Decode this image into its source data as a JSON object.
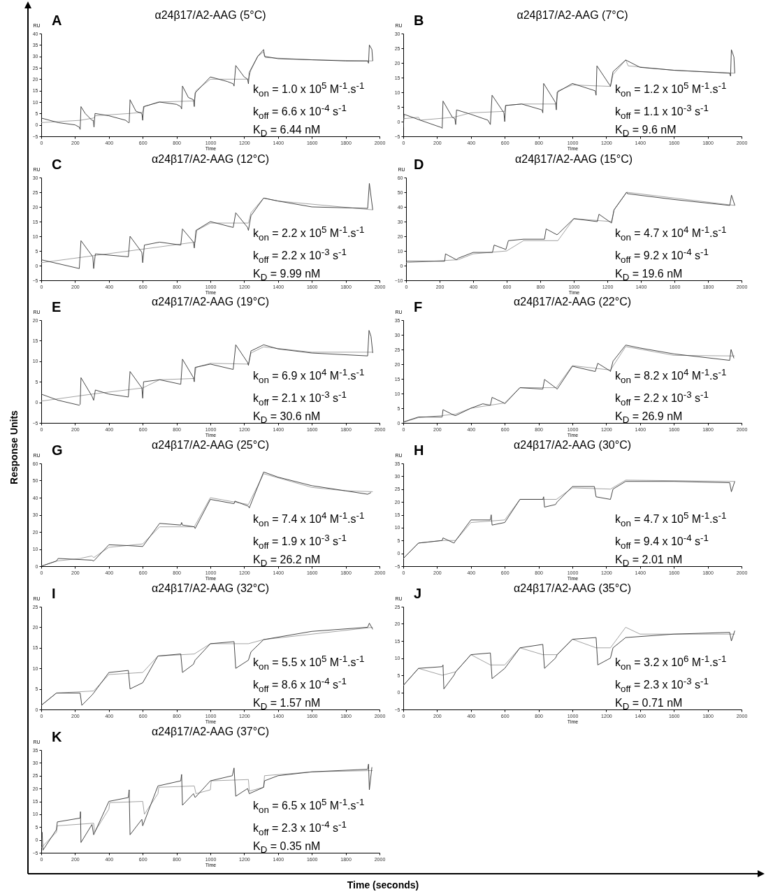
{
  "chart_data": [
    {
      "type": "line",
      "title": "α24β17/A2-AAG (5°C)",
      "xlabel": "Time",
      "ylabel": "RU",
      "annotations": [
        "A",
        "k$_{on}$ = 1.0 x 10$^{5}$ M$^{-1}$.s$^{-1}$",
        "k$_{off}$ = 6.6 x 10$^{-4}$ s$^{-1}$",
        "K$_{D}$ = 6.44 nM"
      ],
      "xlim": [
        0,
        2000
      ],
      "xticks": [
        0,
        200,
        400,
        600,
        800,
        1000,
        1200,
        1400,
        1600,
        1800,
        2000
      ],
      "ylim": [
        -5,
        40
      ],
      "yticks": [
        -5,
        0,
        5,
        10,
        15,
        20,
        25,
        30,
        35,
        40
      ],
      "series": [
        {
          "color": "#999999",
          "x": [
            0,
            230,
            310,
            320,
            520,
            600,
            610,
            690,
            905,
            915,
            1000,
            1225,
            1240,
            1280,
            1315,
            1325,
            1600,
            1960
          ],
          "values": [
            1,
            2,
            3,
            4,
            5,
            5.5,
            8,
            10,
            10.5,
            15,
            20,
            20,
            24,
            30,
            32,
            29.5,
            28.5,
            28
          ]
        },
        {
          "color": "#333333",
          "x": [
            0,
            50,
            100,
            200,
            225,
            230,
            235,
            260,
            300,
            308,
            312,
            318,
            400,
            500,
            515,
            520,
            525,
            560,
            595,
            600,
            605,
            700,
            800,
            825,
            830,
            835,
            870,
            900,
            905,
            910,
            1000,
            1100,
            1135,
            1140,
            1150,
            1200,
            1220,
            1225,
            1230,
            1280,
            1315,
            1320,
            1400,
            1600,
            1800,
            1930,
            1935,
            1940,
            1955,
            1960
          ],
          "values": [
            3,
            2,
            1,
            0,
            -1,
            -2,
            8,
            5,
            2,
            2,
            -1,
            5,
            4,
            2,
            1,
            1,
            11,
            6,
            5,
            2,
            8,
            10,
            9,
            8,
            7,
            17,
            12,
            11,
            8,
            14,
            21,
            19,
            18,
            17,
            26,
            21,
            20,
            18,
            23,
            30,
            33,
            30,
            29,
            28.5,
            28,
            28,
            27,
            35,
            33,
            28
          ]
        }
      ]
    },
    {
      "type": "line",
      "title": "α24β17/A2-AAG (7°C)",
      "xlabel": "Time",
      "ylabel": "RU",
      "annotations": [
        "B",
        "k$_{on}$ = 1.2 x 10$^{5}$ M$^{-1}$.s$^{-1}$",
        "k$_{off}$ = 1.1 x 10$^{-3}$ s$^{-1}$",
        "K$_{D}$ = 9.6 nM"
      ],
      "xlim": [
        0,
        2000
      ],
      "xticks": [
        0,
        200,
        400,
        600,
        800,
        1000,
        1200,
        1400,
        1600,
        1800,
        2000
      ],
      "ylim": [
        -5,
        30
      ],
      "yticks": [
        -5,
        0,
        5,
        10,
        15,
        20,
        25,
        30
      ],
      "series": [
        {
          "color": "#999999",
          "x": [
            0,
            90,
            100,
            300,
            400,
            600,
            605,
            700,
            905,
            915,
            1000,
            1225,
            1240,
            1315,
            1330,
            1600,
            1960
          ],
          "values": [
            1,
            1.5,
            0.5,
            1.5,
            3,
            3.5,
            5.5,
            6,
            6,
            10.5,
            12.5,
            12,
            16,
            21,
            19,
            17.5,
            16.5
          ]
        },
        {
          "color": "#333333",
          "x": [
            0,
            5,
            100,
            225,
            230,
            235,
            290,
            305,
            310,
            315,
            400,
            500,
            515,
            525,
            595,
            600,
            605,
            700,
            820,
            825,
            830,
            900,
            905,
            910,
            1000,
            1135,
            1140,
            1145,
            1220,
            1225,
            1240,
            1315,
            1400,
            1600,
            1930,
            1935,
            1940,
            1955,
            1960
          ],
          "values": [
            -2,
            2.5,
            0.5,
            -2,
            -2.3,
            7,
            1.5,
            1,
            -1,
            4,
            2.5,
            0.5,
            -1,
            9,
            3,
            0,
            5.5,
            6,
            4,
            3,
            13,
            6.5,
            4,
            10,
            13,
            10.5,
            9,
            19,
            12.5,
            12,
            17,
            21,
            18.5,
            17.5,
            16.5,
            15.5,
            24.5,
            22,
            16.5
          ]
        }
      ]
    },
    {
      "type": "line",
      "title": "α24β17/A2-AAG (12°C)",
      "xlabel": "Time",
      "ylabel": "RU",
      "annotations": [
        "C",
        "k$_{on}$ = 2.2 x 10$^{5}$ M$^{-1}$.s$^{-1}$",
        "k$_{off}$ = 2.2 x 10$^{-3}$ s$^{-1}$",
        "K$_{D}$ = 9.99 nM"
      ],
      "xlim": [
        0,
        2000
      ],
      "xticks": [
        0,
        200,
        400,
        600,
        800,
        1000,
        1200,
        1400,
        1600,
        1800,
        2000
      ],
      "ylim": [
        -5,
        30
      ],
      "yticks": [
        -5,
        0,
        5,
        10,
        15,
        20,
        25,
        30
      ],
      "series": [
        {
          "color": "#999999",
          "x": [
            0,
            910,
            920,
            1000,
            1225,
            1240,
            1315,
            1400,
            1960
          ],
          "values": [
            1,
            8,
            12,
            14.5,
            14.5,
            18,
            23,
            22,
            19
          ]
        },
        {
          "color": "#333333",
          "x": [
            0,
            225,
            235,
            305,
            310,
            320,
            515,
            525,
            595,
            600,
            610,
            700,
            825,
            835,
            900,
            905,
            915,
            1000,
            1135,
            1150,
            1220,
            1225,
            1240,
            1315,
            1400,
            1600,
            1930,
            1940,
            1960
          ],
          "values": [
            2,
            -1,
            8.5,
            3,
            -1,
            4,
            3,
            10,
            4.5,
            1,
            7,
            8,
            7,
            12.5,
            8,
            6,
            12,
            15,
            13,
            18,
            13,
            12,
            17,
            23,
            22,
            20,
            19.5,
            28,
            19
          ]
        }
      ]
    },
    {
      "type": "line",
      "title": "α24β17/A2-AAG (15°C)",
      "xlabel": "Time",
      "ylabel": "RU",
      "annotations": [
        "D",
        "k$_{on}$ = 4.7 x 10$^{4}$ M$^{-1}$.s$^{-1}$",
        "k$_{off}$ = 9.2 x 10$^{-4}$ s$^{-1}$",
        "K$_{D}$ = 19.6 nM"
      ],
      "xlim": [
        0,
        2000
      ],
      "xticks": [
        0,
        200,
        400,
        600,
        800,
        1000,
        1200,
        1400,
        1600,
        1800,
        2000
      ],
      "ylim": [
        -10,
        60
      ],
      "yticks": [
        -10,
        0,
        10,
        20,
        30,
        40,
        50,
        60
      ],
      "series": [
        {
          "color": "#999999",
          "x": [
            0,
            310,
            400,
            600,
            700,
            905,
            1000,
            1225,
            1240,
            1315,
            1960
          ],
          "values": [
            2,
            4,
            8,
            10,
            17,
            17,
            32,
            30,
            38,
            50,
            41
          ]
        },
        {
          "color": "#333333",
          "x": [
            0,
            230,
            235,
            300,
            310,
            400,
            515,
            525,
            595,
            610,
            700,
            825,
            835,
            900,
            910,
            1000,
            1140,
            1150,
            1225,
            1240,
            1315,
            1320,
            1600,
            1930,
            1940,
            1960
          ],
          "values": [
            3,
            3,
            8,
            4,
            5,
            9,
            9,
            14,
            11,
            17,
            18,
            18,
            25,
            21,
            22,
            32,
            30,
            35,
            29,
            38,
            50,
            49,
            45,
            41,
            48,
            41
          ]
        }
      ]
    },
    {
      "type": "line",
      "title": "α24β17/A2-AAG (19°C)",
      "xlabel": "Time",
      "ylabel": "RU",
      "annotations": [
        "E",
        "k$_{on}$ = 6.9 x 10$^{4}$ M$^{-1}$.s$^{-1}$",
        "k$_{off}$ = 2.1 x 10$^{-3}$ s$^{-1}$",
        "K$_{D}$ = 30.6 nM"
      ],
      "xlim": [
        0,
        2000
      ],
      "xticks": [
        0,
        200,
        400,
        600,
        800,
        1000,
        1200,
        1400,
        1600,
        1800,
        2000
      ],
      "ylim": [
        -5,
        20
      ],
      "yticks": [
        -5,
        0,
        5,
        10,
        15,
        20
      ],
      "series": [
        {
          "color": "#999999",
          "x": [
            0,
            300,
            600,
            700,
            905,
            915,
            1000,
            1225,
            1240,
            1315,
            1600,
            1960
          ],
          "values": [
            0.3,
            2,
            3.5,
            5.5,
            5.8,
            8.5,
            9.5,
            9.3,
            12,
            13.5,
            12.2,
            12.2
          ]
        },
        {
          "color": "#333333",
          "x": [
            0,
            100,
            225,
            230,
            235,
            300,
            310,
            320,
            400,
            515,
            525,
            595,
            600,
            605,
            700,
            825,
            835,
            900,
            905,
            910,
            1000,
            1135,
            1150,
            1220,
            1225,
            1240,
            1315,
            1400,
            1600,
            1930,
            1938,
            1950,
            1960
          ],
          "values": [
            2,
            0.5,
            -0.7,
            -0.5,
            6,
            1.5,
            0.5,
            3,
            2,
            1.3,
            7.5,
            3.5,
            1,
            5,
            5.5,
            4.4,
            10.5,
            6,
            5,
            8.5,
            9.3,
            8,
            14,
            9.7,
            9,
            12.5,
            14,
            13,
            12,
            11.3,
            17.5,
            16,
            12
          ]
        }
      ]
    },
    {
      "type": "line",
      "title": "α24β17/A2-AAG (22°C)",
      "xlabel": "Time",
      "ylabel": "RU",
      "annotations": [
        "F",
        "k$_{on}$ = 8.2 x 10$^{4}$ M$^{-1}$.s$^{-1}$",
        "k$_{off}$ = 2.2 x 10$^{-3}$ s$^{-1}$",
        "K$_{D}$ = 26.9 nM"
      ],
      "xlim": [
        0,
        2000
      ],
      "xticks": [
        0,
        200,
        400,
        600,
        800,
        1000,
        1200,
        1400,
        1600,
        1800,
        2000
      ],
      "ylim": [
        0,
        35
      ],
      "yticks": [
        0,
        5,
        10,
        15,
        20,
        25,
        30,
        35
      ],
      "series": [
        {
          "color": "#999999",
          "x": [
            0,
            90,
            230,
            310,
            400,
            600,
            690,
            905,
            1000,
            1225,
            1315,
            1600,
            1960
          ],
          "values": [
            0.2,
            1.8,
            2.5,
            3,
            5,
            6.8,
            12,
            12,
            19.5,
            18,
            26,
            23,
            22.8
          ]
        },
        {
          "color": "#333333",
          "x": [
            0,
            90,
            230,
            235,
            300,
            310,
            400,
            470,
            515,
            525,
            595,
            600,
            690,
            825,
            835,
            900,
            910,
            1000,
            1135,
            1150,
            1220,
            1225,
            1240,
            1315,
            1400,
            1600,
            1930,
            1938,
            1955
          ],
          "values": [
            0.3,
            2,
            2,
            4.5,
            2.6,
            2.5,
            5,
            6.5,
            6,
            8.7,
            6.8,
            6.5,
            12,
            11.5,
            14.8,
            12,
            11.5,
            19.3,
            17.5,
            20.3,
            17.8,
            17.5,
            21,
            26.5,
            25.5,
            23.5,
            21.3,
            25,
            22
          ]
        }
      ]
    },
    {
      "type": "line",
      "title": "α24β17/A2-AAG (25°C)",
      "xlabel": "Time",
      "ylabel": "RU",
      "annotations": [
        "G",
        "k$_{on}$ = 7.4 x 10$^{4}$ M$^{-1}$.s$^{-1}$",
        "k$_{off}$ = 1.9 x 10$^{-3}$ s$^{-1}$",
        "K$_{D}$ = 26.2 nM"
      ],
      "xlim": [
        0,
        2000
      ],
      "xticks": [
        0,
        200,
        400,
        600,
        800,
        1000,
        1200,
        1400,
        1600,
        1800,
        2000
      ],
      "ylim": [
        0,
        60
      ],
      "yticks": [
        0,
        10,
        20,
        30,
        40,
        50,
        60
      ],
      "series": [
        {
          "color": "#999999",
          "x": [
            0,
            90,
            230,
            300,
            310,
            400,
            600,
            700,
            905,
            1000,
            1225,
            1315,
            1600,
            1800,
            1960
          ],
          "values": [
            0,
            3,
            4.5,
            6,
            5,
            11,
            13,
            23,
            23,
            40,
            36,
            54,
            46,
            44,
            43.5
          ]
        },
        {
          "color": "#333333",
          "x": [
            0,
            90,
            100,
            300,
            310,
            400,
            520,
            600,
            700,
            825,
            830,
            835,
            905,
            910,
            1000,
            1140,
            1145,
            1225,
            1230,
            1315,
            1400,
            1600,
            1800,
            1930,
            1950
          ],
          "values": [
            0,
            3,
            4.5,
            3.5,
            3,
            12.5,
            12,
            11.5,
            25,
            24,
            25.5,
            24,
            23,
            22,
            39,
            36.5,
            38,
            35,
            34,
            55,
            52,
            47,
            44,
            42,
            43
          ]
        }
      ]
    },
    {
      "type": "line",
      "title": "α24β17/A2-AAG (30°C)",
      "xlabel": "Time",
      "ylabel": "RU",
      "annotations": [
        "H",
        "k$_{on}$ = 4.7 x 10$^{5}$ M$^{-1}$.s$^{-1}$",
        "k$_{off}$ = 9.4 x 10$^{-4}$ s$^{-1}$",
        "K$_{D}$ = 2.01 nM"
      ],
      "xlim": [
        0,
        2000
      ],
      "xticks": [
        0,
        200,
        400,
        600,
        800,
        1000,
        1200,
        1400,
        1600,
        1800,
        2000
      ],
      "ylim": [
        -5,
        35
      ],
      "yticks": [
        -5,
        0,
        5,
        10,
        15,
        20,
        25,
        30,
        35
      ],
      "series": [
        {
          "color": "#999999",
          "x": [
            0,
            90,
            230,
            310,
            400,
            600,
            690,
            905,
            1000,
            1225,
            1315,
            1960
          ],
          "values": [
            -2,
            4,
            5,
            5,
            12,
            13,
            21,
            21,
            25.5,
            25,
            28.5,
            28
          ]
        },
        {
          "color": "#333333",
          "x": [
            0,
            90,
            230,
            235,
            300,
            310,
            400,
            515,
            520,
            525,
            600,
            690,
            825,
            830,
            835,
            900,
            910,
            1000,
            1130,
            1140,
            1225,
            1240,
            1315,
            1600,
            1930,
            1940,
            1960
          ],
          "values": [
            -2,
            4,
            5,
            6,
            4,
            5,
            13,
            13,
            15,
            11,
            12,
            21,
            21,
            22,
            18,
            19,
            20,
            26,
            26,
            22,
            21,
            25,
            28,
            28,
            27.5,
            24,
            28
          ]
        }
      ]
    },
    {
      "type": "line",
      "title": "α24β17/A2-AAG (32°C)",
      "xlabel": "Time",
      "ylabel": "RU",
      "annotations": [
        "I",
        "k$_{on}$ = 5.5 x 10$^{5}$ M$^{-1}$.s$^{-1}$",
        "k$_{off}$ = 8.6 x 10$^{-4}$ s$^{-1}$",
        "K$_{D}$ = 1.57 nM"
      ],
      "xlim": [
        0,
        2000
      ],
      "xticks": [
        0,
        200,
        400,
        600,
        800,
        1000,
        1200,
        1400,
        1600,
        1800,
        2000
      ],
      "ylim": [
        0,
        25
      ],
      "yticks": [
        0,
        5,
        10,
        15,
        20,
        25
      ],
      "series": [
        {
          "color": "#999999",
          "x": [
            0,
            90,
            310,
            400,
            600,
            690,
            905,
            1000,
            1225,
            1315,
            1960
          ],
          "values": [
            1,
            4,
            4.5,
            8.5,
            9,
            13,
            13.5,
            16,
            16,
            17,
            20
          ]
        },
        {
          "color": "#333333",
          "x": [
            0,
            90,
            230,
            240,
            300,
            310,
            400,
            515,
            525,
            600,
            690,
            825,
            835,
            900,
            910,
            1000,
            1140,
            1150,
            1225,
            1240,
            1315,
            1600,
            1930,
            1940,
            1960
          ],
          "values": [
            1,
            4,
            4,
            1,
            3.5,
            4,
            9,
            9.5,
            5,
            6.5,
            13,
            13.5,
            9,
            11,
            12,
            16,
            16.5,
            10,
            12,
            14,
            17,
            19,
            20,
            21,
            19.5
          ]
        }
      ]
    },
    {
      "type": "line",
      "title": "α24β17/A2-AAG (35°C)",
      "xlabel": "Time",
      "ylabel": "RU",
      "annotations": [
        "J",
        "k$_{on}$ = 3.2 x 10$^{6}$ M$^{-1}$.s$^{-1}$",
        "k$_{off}$ = 2.3 x 10$^{-3}$ s$^{-1}$",
        "K$_{D}$ = 0.71 nM"
      ],
      "xlim": [
        0,
        2000
      ],
      "xticks": [
        0,
        200,
        400,
        600,
        800,
        1000,
        1200,
        1400,
        1600,
        1800,
        2000
      ],
      "ylim": [
        -5,
        25
      ],
      "yticks": [
        -5,
        0,
        5,
        10,
        15,
        20,
        25
      ],
      "series": [
        {
          "color": "#999999",
          "x": [
            0,
            90,
            230,
            310,
            400,
            515,
            600,
            690,
            825,
            910,
            1000,
            1140,
            1225,
            1315,
            1400,
            1960
          ],
          "values": [
            2,
            7,
            5,
            6,
            11,
            8,
            8,
            13,
            11,
            11,
            15.5,
            13,
            13,
            19,
            17,
            17
          ]
        },
        {
          "color": "#333333",
          "x": [
            0,
            90,
            230,
            235,
            240,
            300,
            310,
            400,
            515,
            525,
            600,
            690,
            825,
            835,
            900,
            910,
            1000,
            1140,
            1150,
            1225,
            1240,
            1315,
            1600,
            1930,
            1940,
            1960
          ],
          "values": [
            2,
            7,
            7.5,
            8,
            1,
            5,
            6,
            11,
            11.5,
            4,
            7,
            13,
            14,
            7,
            10,
            11,
            15.5,
            16,
            8,
            10,
            13,
            16,
            17,
            17.5,
            15,
            18
          ]
        }
      ]
    },
    {
      "type": "line",
      "title": "α24β17/A2-AAG (37°C)",
      "xlabel": "Time",
      "ylabel": "RU",
      "annotations": [
        "K",
        "k$_{on}$ = 6.5 x 10$^{5}$ M$^{-1}$.s$^{-1}$",
        "k$_{off}$ = 2.3 x 10$^{-4}$ s$^{-1}$",
        "K$_{D}$ = 0.35 nM"
      ],
      "xlim": [
        0,
        2000
      ],
      "xticks": [
        0,
        200,
        400,
        600,
        800,
        1000,
        1200,
        1400,
        1600,
        1800,
        2000
      ],
      "ylim": [
        -5,
        35
      ],
      "yticks": [
        -5,
        0,
        5,
        10,
        15,
        20,
        25,
        30,
        35
      ],
      "series": [
        {
          "color": "#999999",
          "x": [
            0,
            90,
            95,
            310,
            315,
            400,
            405,
            600,
            610,
            690,
            695,
            905,
            915,
            1000,
            1005,
            1225,
            1230,
            1315,
            1320,
            1600,
            1960
          ],
          "values": [
            -3,
            3,
            5.5,
            6.5,
            3,
            12,
            14.5,
            15,
            10,
            18,
            20.5,
            21,
            18,
            19.5,
            23,
            23.5,
            19,
            20.5,
            25,
            26.5,
            27
          ]
        },
        {
          "color": "#333333",
          "x": [
            0,
            5,
            10,
            90,
            95,
            230,
            232,
            235,
            300,
            310,
            400,
            515,
            520,
            525,
            595,
            600,
            690,
            825,
            830,
            835,
            900,
            910,
            1000,
            1130,
            1140,
            1150,
            1220,
            1230,
            1315,
            1320,
            1400,
            1600,
            1930,
            1935,
            1940,
            1955
          ],
          "values": [
            -2,
            3,
            -4,
            4,
            7,
            8.5,
            11,
            -1,
            6,
            2,
            15,
            16.5,
            19.5,
            2,
            8,
            5.5,
            21,
            23,
            25.5,
            13.5,
            18,
            16.5,
            23,
            25,
            28,
            17,
            20,
            18,
            20.5,
            23,
            25,
            26.5,
            27.5,
            29.5,
            19.5,
            28.3
          ]
        }
      ]
    },
    {
      "type": "other",
      "xlabel": "Time (seconds)",
      "ylabel": "Response Units"
    }
  ]
}
